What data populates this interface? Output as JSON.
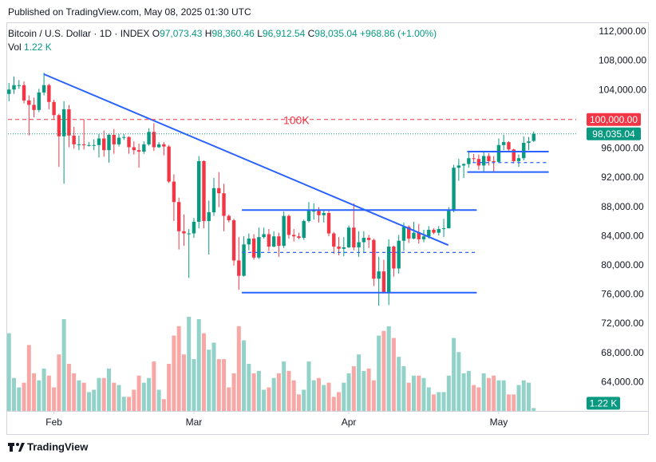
{
  "chart_data": {
    "type": "candlestick",
    "published": "Published on TradingView.com, May 08, 2025 01:30 UTC",
    "symbol": "Bitcoin / U.S. Dollar · 1D · INDEX",
    "ohlc_labels": {
      "o_label": "O",
      "o": "97,073.43",
      "h_label": "H",
      "h": "98,360.46",
      "l_label": "L",
      "l": "96,912.54",
      "c_label": "C",
      "c": "98,035.04",
      "change": "+968.86 (+1.00%)"
    },
    "volume_label": "Vol",
    "volume_value": "1.22 K",
    "brand": "TradingView",
    "up_color": "#089981",
    "down_color": "#f23645",
    "volume_up_color": "#92d2c8",
    "volume_down_color": "#f7a8a6",
    "xlim": [
      -0.2,
      113.5
    ],
    "xticks": [
      {
        "value": 9,
        "label": "Feb"
      },
      {
        "value": 37,
        "label": "Mar"
      },
      {
        "value": 68,
        "label": "Apr"
      },
      {
        "value": 98,
        "label": "May"
      }
    ],
    "ylim": [
      60100,
      113300
    ],
    "yticks": [
      {
        "value": 64000,
        "label": "64,000.00"
      },
      {
        "value": 68000,
        "label": "68,000.00"
      },
      {
        "value": 72000,
        "label": "72,000.00"
      },
      {
        "value": 76000,
        "label": "76,000.00"
      },
      {
        "value": 80000,
        "label": "80,000.00"
      },
      {
        "value": 84000,
        "label": "84,000.00"
      },
      {
        "value": 88000,
        "label": "88,000.00"
      },
      {
        "value": 92000,
        "label": "92,000.00"
      },
      {
        "value": 96000,
        "label": "96,000.00"
      },
      {
        "value": 104000,
        "label": "104,000.00"
      },
      {
        "value": 108000,
        "label": "108,000.00"
      },
      {
        "value": 112000,
        "label": "112,000.00"
      }
    ],
    "volume_lim": [
      0,
      40
    ],
    "grid": false,
    "open": [
      103500,
      104100,
      104700,
      104700,
      102600,
      102000,
      101300,
      103700,
      104700,
      102400,
      100600,
      97700,
      101400,
      97800,
      96600,
      96600,
      96500,
      96500,
      96500,
      97400,
      95800,
      97900,
      96600,
      97500,
      97600,
      96200,
      95800,
      95600,
      96600,
      98300,
      96200,
      96600,
      96300,
      91500,
      88700,
      84700,
      84400,
      84400,
      86000,
      94300,
      86100,
      87300,
      90600,
      89900,
      86800,
      86200,
      80700,
      78600,
      82900,
      83700,
      81100,
      83900,
      84300,
      82600,
      84000,
      82700,
      86800,
      84200,
      84000,
      83800,
      86100,
      87500,
      87500,
      86900,
      87200,
      84400,
      82600,
      82300,
      82500,
      85200,
      82500,
      83200,
      83800,
      83500,
      78200,
      79200,
      76300,
      82600,
      79600,
      83400,
      85300,
      83700,
      84500,
      83600,
      84000,
      84900,
      84500,
      85000,
      85100,
      87500,
      93400,
      93700,
      93900,
      94700,
      94600,
      93700,
      95000,
      94300,
      94200,
      96500,
      96900,
      95900,
      94300,
      94700,
      96800,
      97073.43
    ],
    "high": [
      105000,
      105900,
      105400,
      105200,
      103300,
      103000,
      104200,
      106400,
      104900,
      102700,
      100800,
      102500,
      102000,
      99000,
      97800,
      100000,
      96900,
      97300,
      98000,
      98500,
      98100,
      98700,
      98000,
      98000,
      97700,
      97000,
      96700,
      97000,
      98800,
      99500,
      96900,
      96900,
      96500,
      92500,
      89300,
      87000,
      85000,
      86500,
      95000,
      94400,
      88900,
      92000,
      92800,
      91200,
      87000,
      86400,
      83900,
      84000,
      84400,
      84300,
      85200,
      85200,
      85000,
      84700,
      84500,
      87400,
      87000,
      85000,
      84500,
      86300,
      88700,
      88500,
      88000,
      87700,
      87500,
      84600,
      83900,
      83900,
      85500,
      88500,
      84700,
      84700,
      84200,
      83700,
      81200,
      80800,
      83600,
      82700,
      84200,
      85900,
      85500,
      86000,
      85700,
      84900,
      85400,
      85100,
      85400,
      86400,
      88000,
      93800,
      94600,
      94000,
      95500,
      95300,
      95200,
      95500,
      95400,
      95000,
      97400,
      97900,
      97000,
      96000,
      95200,
      97700,
      97600,
      98360.46
    ],
    "low": [
      102500,
      103500,
      104200,
      102200,
      97800,
      100300,
      101000,
      103300,
      101400,
      100000,
      93500,
      91200,
      96200,
      96000,
      95800,
      95900,
      96300,
      95800,
      94800,
      94900,
      94100,
      95300,
      96300,
      97200,
      95300,
      95200,
      93400,
      95300,
      96400,
      95700,
      96100,
      95100,
      91300,
      86100,
      82200,
      82700,
      78300,
      83800,
      85100,
      85100,
      81500,
      86800,
      88000,
      84700,
      85900,
      80000,
      76700,
      78500,
      82100,
      80800,
      80900,
      83700,
      82000,
      82500,
      81200,
      82400,
      83700,
      83300,
      83600,
      83500,
      85900,
      86300,
      85900,
      85900,
      84000,
      81600,
      81400,
      81300,
      82400,
      82100,
      81200,
      81700,
      82400,
      77200,
      74500,
      76200,
      74600,
      78500,
      78900,
      82000,
      83100,
      83600,
      83000,
      83200,
      83700,
      84300,
      84100,
      83900,
      85100,
      87300,
      91600,
      92000,
      93400,
      94200,
      93100,
      92900,
      93700,
      92900,
      94100,
      95800,
      95700,
      94000,
      93500,
      94400,
      95800,
      96912.54
    ],
    "close": [
      104100,
      104700,
      104700,
      102600,
      102000,
      101300,
      103700,
      104700,
      102400,
      100600,
      97700,
      101400,
      97800,
      96600,
      96600,
      96500,
      96500,
      96500,
      97400,
      95800,
      97900,
      96600,
      97500,
      97600,
      96200,
      95800,
      95600,
      96600,
      98300,
      96200,
      96600,
      96300,
      91500,
      88700,
      84700,
      84400,
      84400,
      86000,
      94300,
      86100,
      87300,
      90600,
      89900,
      86800,
      86200,
      80700,
      78600,
      82900,
      83700,
      81100,
      83900,
      84300,
      82600,
      84000,
      82700,
      86800,
      84200,
      84000,
      83800,
      86100,
      87500,
      87500,
      86900,
      87200,
      84400,
      82600,
      82300,
      82500,
      85200,
      82500,
      83200,
      83800,
      83500,
      78200,
      79200,
      76300,
      82600,
      79600,
      83400,
      85300,
      83700,
      84500,
      83600,
      84000,
      84900,
      84500,
      85000,
      85100,
      87500,
      93400,
      93700,
      93900,
      94700,
      94600,
      93700,
      95000,
      94300,
      94200,
      96500,
      96900,
      95900,
      94300,
      94700,
      96800,
      97000,
      98035.04
    ],
    "volume": [
      33,
      14,
      10,
      12,
      28,
      16,
      13,
      18,
      15,
      10,
      24,
      39,
      20,
      16,
      13,
      12,
      8,
      9,
      14,
      14,
      18,
      12,
      11,
      6,
      6,
      9,
      15,
      12,
      14,
      21,
      9,
      5,
      20,
      32,
      36,
      24,
      40,
      22,
      39,
      33,
      26,
      29,
      22,
      22,
      10,
      16,
      36,
      30,
      20,
      16,
      17,
      9,
      10,
      14,
      16,
      21,
      17,
      13,
      7,
      9,
      21,
      13,
      14,
      11,
      12,
      6,
      8,
      12,
      16,
      19,
      24,
      17,
      18,
      13,
      32,
      34,
      36,
      31,
      23,
      19,
      12,
      15,
      15,
      14,
      10,
      7,
      8,
      8,
      15,
      31,
      25,
      16,
      17,
      11,
      10,
      16,
      14,
      15,
      13,
      13,
      7,
      7,
      11,
      13,
      12,
      1.22
    ],
    "drawings": [
      {
        "x": [
          7.0,
          87.9
        ],
        "y": [
          106200,
          82800
        ],
        "color": "#2962ff",
        "dash": false
      },
      {
        "x": [
          46.6,
          93.6
        ],
        "y": [
          87600,
          87600
        ],
        "color": "#2962ff",
        "dash": false
      },
      {
        "x": [
          46.6,
          93.6
        ],
        "y": [
          76300,
          76300
        ],
        "color": "#2962ff",
        "dash": false
      },
      {
        "x": [
          46.6,
          93.6
        ],
        "y": [
          81800,
          81800
        ],
        "color": "#2962ff",
        "dash": true
      },
      {
        "x": [
          91.7,
          108.0
        ],
        "y": [
          95600,
          95600
        ],
        "color": "#2962ff",
        "dash": false
      },
      {
        "x": [
          91.7,
          108.0
        ],
        "y": [
          92800,
          92800
        ],
        "color": "#2962ff",
        "dash": false
      },
      {
        "x": [
          92.8,
          107.7
        ],
        "y": [
          94100,
          94100
        ],
        "color": "#2962ff",
        "dash": true
      }
    ],
    "annotations": [
      {
        "text": "100K",
        "value": 100000,
        "x": 57.5,
        "color": "#f23645"
      }
    ],
    "price_tags": [
      {
        "value": 100000,
        "label": "100,000.00",
        "color": "#f23645"
      },
      {
        "value": 98035.04,
        "label": "98,035.04",
        "color": "#089981"
      }
    ],
    "volume_tag": {
      "value": 1.22,
      "label": "1.22 K",
      "color": "#089981"
    }
  }
}
